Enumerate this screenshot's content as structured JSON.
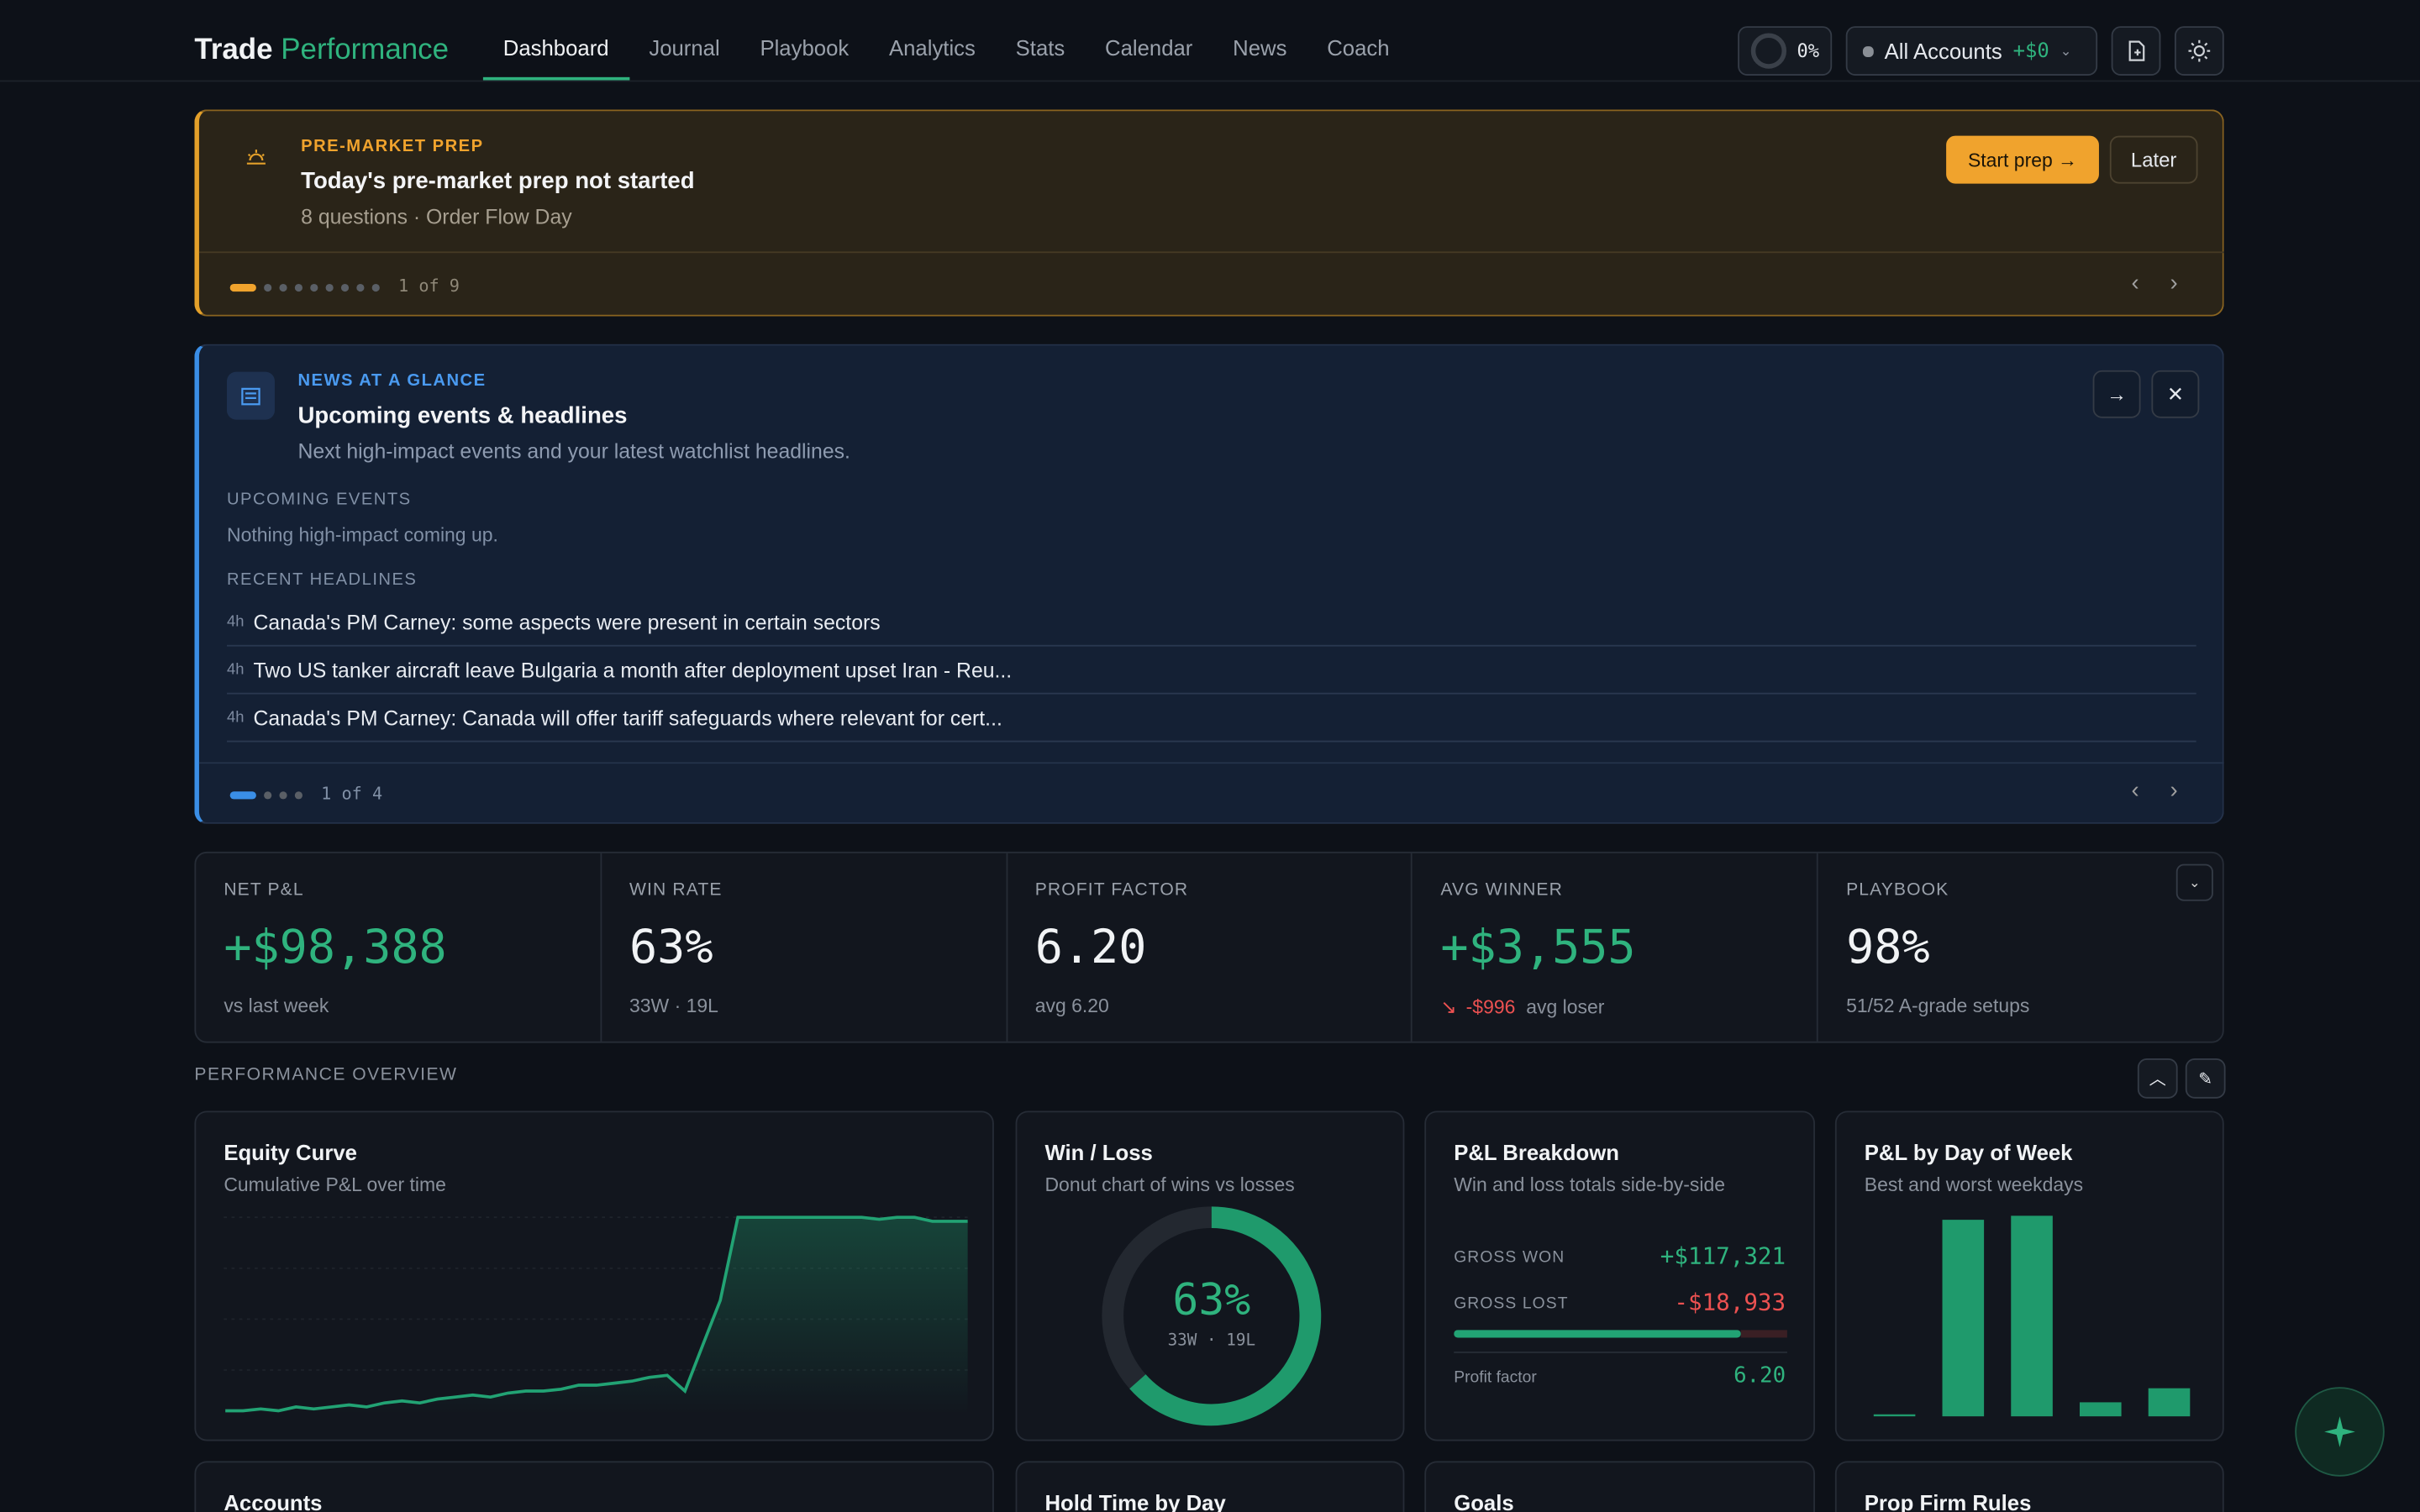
{
  "nav": {
    "brand_1": "Trade",
    "brand_2": "Performance",
    "tabs": [
      "Dashboard",
      "Journal",
      "Playbook",
      "Analytics",
      "Stats",
      "Calendar",
      "News",
      "Coach"
    ],
    "progress": "0%",
    "account": "All Accounts",
    "account_pnl": "+$0"
  },
  "prep": {
    "kicker": "PRE-MARKET PREP",
    "title": "Today's pre-market prep not started",
    "subtitle": "8 questions · Order Flow Day",
    "start": "Start prep →",
    "later": "Later",
    "pager": "1 of 9"
  },
  "news": {
    "kicker": "NEWS AT A GLANCE",
    "title": "Upcoming events & headlines",
    "subtitle": "Next high-impact events and your latest watchlist headlines.",
    "events_label": "UPCOMING EVENTS",
    "events_empty": "Nothing high-impact coming up.",
    "headlines_label": "RECENT HEADLINES",
    "headlines": [
      {
        "age": "4h",
        "text": "Canada's PM Carney: some aspects were present in certain sectors"
      },
      {
        "age": "4h",
        "text": "Two US tanker aircraft leave Bulgaria a month after deployment upset Iran - Reu..."
      },
      {
        "age": "4h",
        "text": "Canada's PM Carney: Canada will offer tariff safeguards where relevant for cert..."
      }
    ],
    "pager": "1 of 4"
  },
  "stats": [
    {
      "label": "NET P&L",
      "value": "+$98,388",
      "sub": "vs last week"
    },
    {
      "label": "WIN RATE",
      "value": "63%",
      "sub": "33W · 19L"
    },
    {
      "label": "PROFIT FACTOR",
      "value": "6.20",
      "sub": "avg 6.20"
    },
    {
      "label": "AVG WINNER",
      "value": "+$3,555",
      "sub_value": "-$996",
      "sub": "avg loser"
    },
    {
      "label": "PLAYBOOK",
      "value": "98%",
      "sub": "51/52 A-grade setups"
    }
  ],
  "overview": {
    "title": "PERFORMANCE OVERVIEW",
    "equity": {
      "title": "Equity Curve",
      "subtitle": "Cumulative P&L over time",
      "ylim": [
        0,
        100
      ],
      "values": [
        2,
        2,
        3,
        2,
        4,
        3,
        4,
        5,
        4,
        6,
        7,
        6,
        8,
        9,
        10,
        9,
        11,
        12,
        12,
        13,
        15,
        15,
        16,
        17,
        19,
        20,
        12,
        35,
        58,
        100,
        100,
        100,
        100,
        100,
        100,
        100,
        100,
        99,
        100,
        100,
        98,
        98,
        98
      ]
    },
    "win_loss": {
      "title": "Win / Loss",
      "subtitle": "Donut chart of wins vs losses",
      "center": "63%",
      "sub": "33W · 19L",
      "wins": 33,
      "losses": 19
    },
    "breakdown": {
      "title": "P&L Breakdown",
      "subtitle": "Win and loss totals side-by-side",
      "won_label": "GROSS WON",
      "won": "+$117,321",
      "won_value": 117321,
      "lost_label": "GROSS LOST",
      "lost": "-$18,933",
      "lost_value": 18933,
      "pf_label": "Profit factor",
      "pf": "6.20"
    },
    "dow": {
      "title": "P&L by Day of Week",
      "subtitle": "Best and worst weekdays",
      "ylim": [
        0,
        100
      ],
      "values": [
        1,
        98,
        100,
        7,
        14
      ]
    },
    "more": [
      "Accounts",
      "Hold Time by Day",
      "Goals",
      "Prop Firm Rules"
    ]
  }
}
